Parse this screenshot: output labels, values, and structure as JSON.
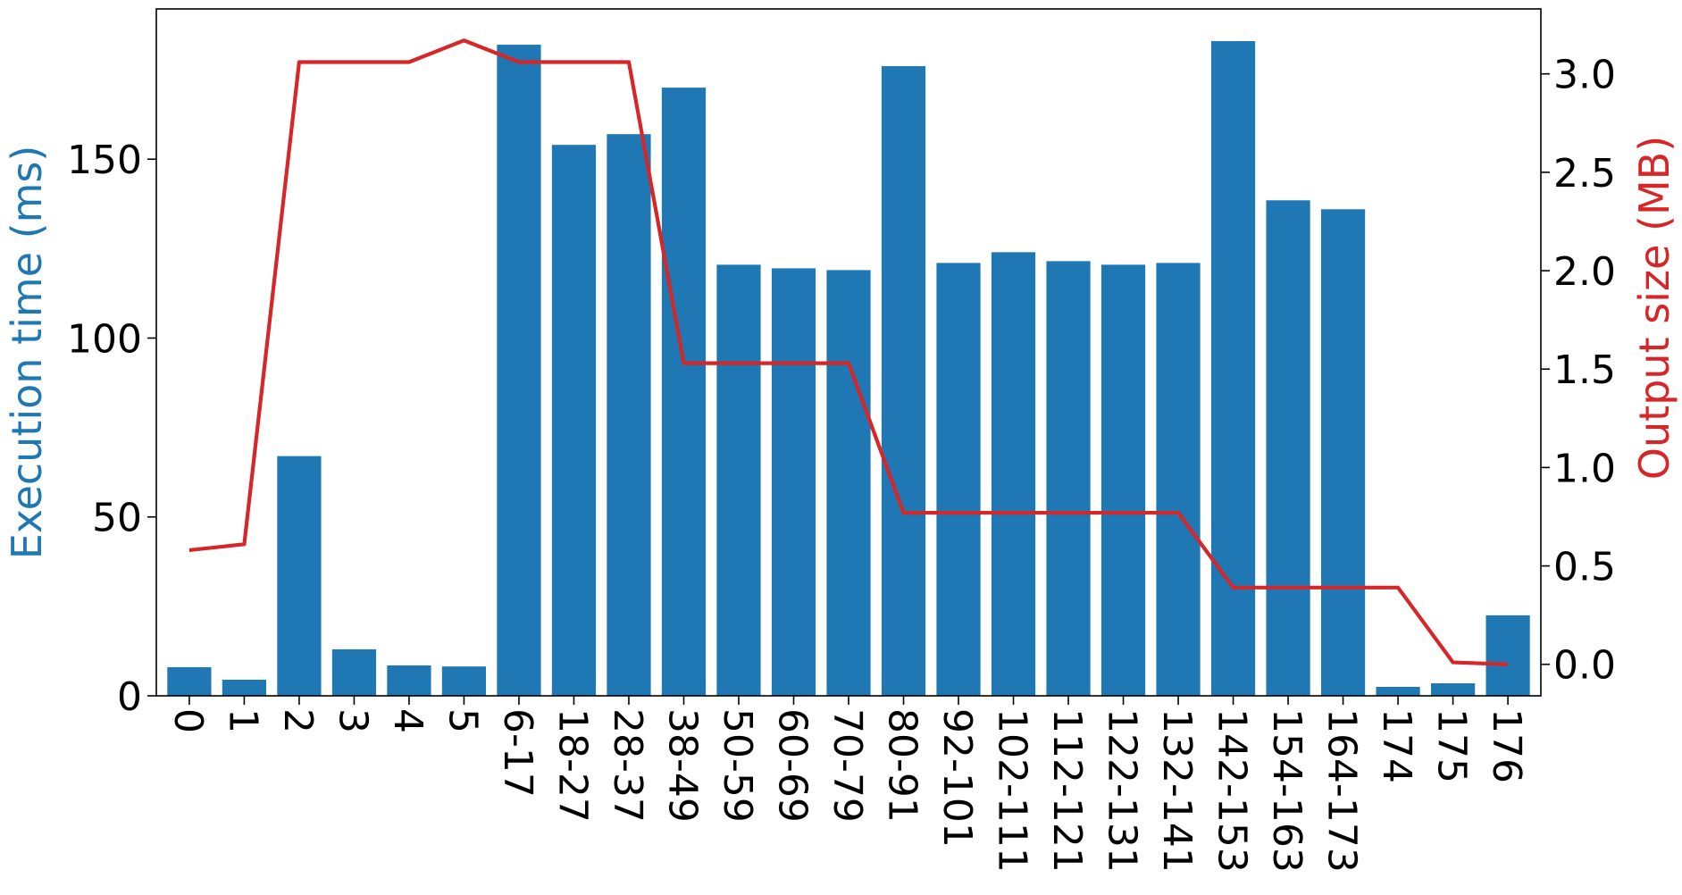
{
  "chart_data": {
    "type": "bar",
    "categories": [
      "0",
      "1",
      "2",
      "3",
      "4",
      "5",
      "6-17",
      "18-27",
      "28-37",
      "38-49",
      "50-59",
      "60-69",
      "70-79",
      "80-91",
      "92-101",
      "102-111",
      "112-121",
      "122-131",
      "132-141",
      "142-153",
      "154-163",
      "164-173",
      "174",
      "175",
      "176"
    ],
    "series": [
      {
        "axis": "left",
        "type": "bar",
        "color": "#1f77b4",
        "values": [
          8,
          4.5,
          67,
          13,
          8.5,
          8.2,
          182,
          154,
          157,
          170,
          120.5,
          119.5,
          119,
          176,
          121,
          124,
          121.5,
          120.5,
          121,
          183,
          138.5,
          136,
          2.5,
          3.5,
          22.5
        ]
      },
      {
        "axis": "right",
        "type": "line",
        "color": "#d62728",
        "values": [
          0.58,
          0.61,
          3.06,
          3.06,
          3.06,
          3.17,
          3.06,
          3.06,
          3.06,
          1.53,
          1.53,
          1.53,
          1.53,
          0.77,
          0.77,
          0.77,
          0.77,
          0.77,
          0.77,
          0.39,
          0.39,
          0.39,
          0.39,
          0.01,
          0.0
        ]
      }
    ],
    "ylabel": "Execution time (ms)",
    "ylabel_right": "Output size (MB)",
    "xlabel": "",
    "ylim": [
      0,
      192
    ],
    "ylim_right": [
      -0.16,
      3.33
    ],
    "yticks": [
      "0",
      "50",
      "100",
      "150"
    ],
    "yticks_right": [
      "0.0",
      "0.5",
      "1.0",
      "1.5",
      "2.0",
      "2.5",
      "3.0"
    ],
    "ylabel_color": "#1f77b4",
    "ylabel_right_color": "#d62728",
    "grid": false,
    "legend": "none"
  }
}
